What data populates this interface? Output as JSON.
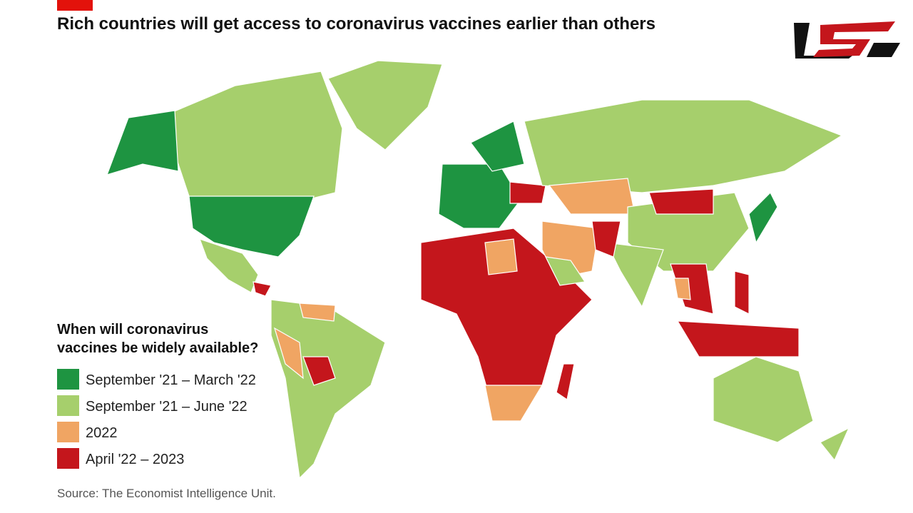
{
  "title": "Rich countries will get access to coronavirus vaccines earlier than others",
  "legend": {
    "title": [
      "When will coronavirus",
      "vaccines be widely available?"
    ],
    "items": [
      {
        "label": "September '21 – March '22",
        "color": "#1e9441"
      },
      {
        "label": "September '21 – June '22",
        "color": "#a6cf6c"
      },
      {
        "label": "2022",
        "color": "#f0a563"
      },
      {
        "label": "April '22 – 2023",
        "color": "#c4161c"
      }
    ]
  },
  "source": "Source: The Economist Intelligence Unit."
}
